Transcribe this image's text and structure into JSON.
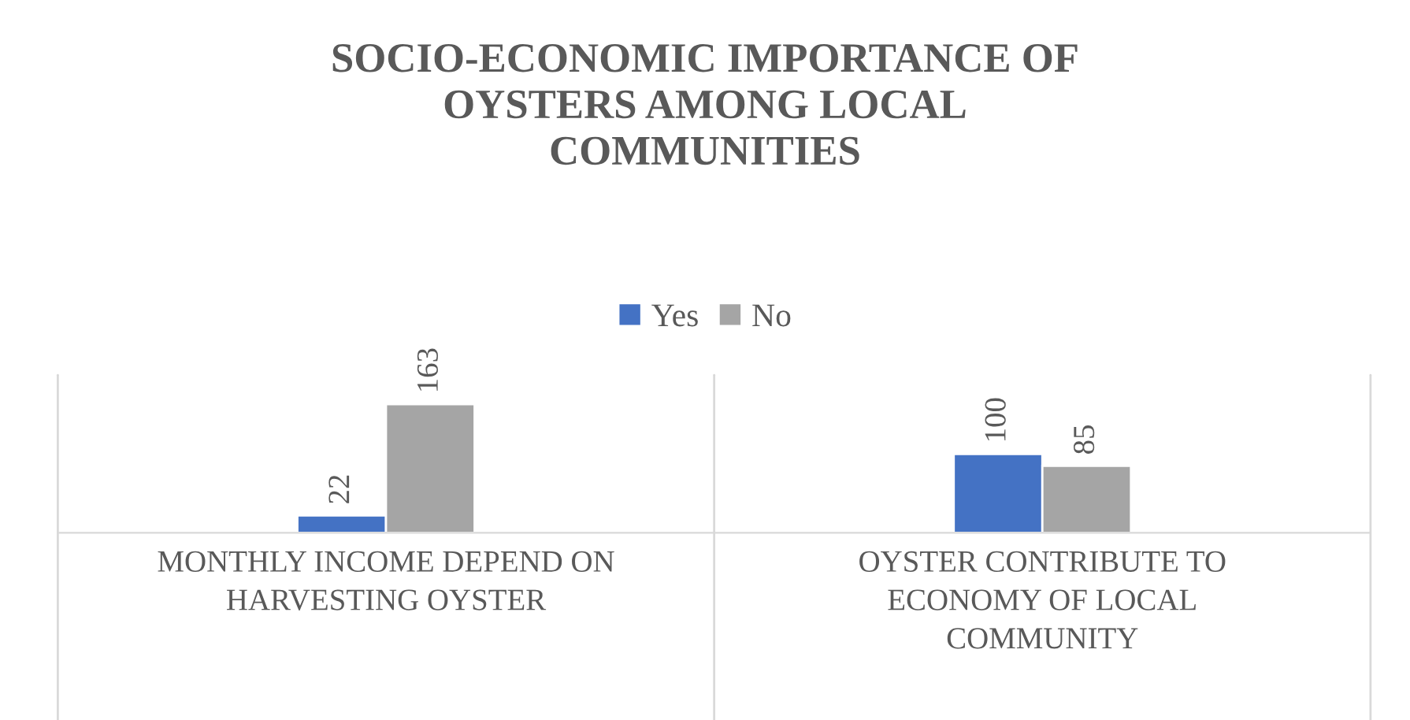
{
  "chart_data": {
    "type": "bar",
    "title": "SOCIO-ECONOMIC IMPORTANCE OF OYSTERS AMONG LOCAL COMMUNITIES",
    "categories": [
      "MONTHLY INCOME DEPEND ON HARVESTING OYSTER",
      "OYSTER CONTRIBUTE TO ECONOMY OF LOCAL COMMUNITY"
    ],
    "series": [
      {
        "name": "Yes",
        "color": "#4472c4",
        "values": [
          22,
          100
        ]
      },
      {
        "name": "No",
        "color": "#a5a5a5",
        "values": [
          163,
          85
        ]
      }
    ],
    "ylim": [
      0,
      200
    ],
    "data_labels": true,
    "legend": "top",
    "grid": false,
    "tick_labels": "x"
  }
}
